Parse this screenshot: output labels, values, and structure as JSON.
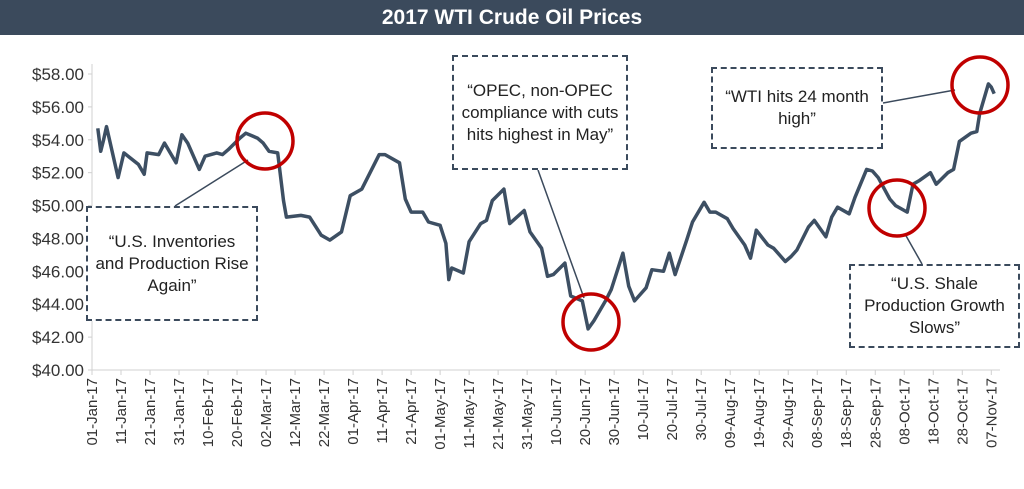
{
  "chart_data": {
    "type": "line",
    "title": "2017 WTI Crude Oil Prices",
    "color": "#3d4f63",
    "grid": false,
    "x": [
      "2017-01-03",
      "2017-01-04",
      "2017-01-05",
      "2017-01-06",
      "2017-01-10",
      "2017-01-12",
      "2017-01-17",
      "2017-01-19",
      "2017-01-20",
      "2017-01-24",
      "2017-01-26",
      "2017-01-30",
      "2017-02-01",
      "2017-02-03",
      "2017-02-07",
      "2017-02-09",
      "2017-02-13",
      "2017-02-15",
      "2017-02-17",
      "2017-02-21",
      "2017-02-23",
      "2017-02-27",
      "2017-03-01",
      "2017-03-03",
      "2017-03-06",
      "2017-03-08",
      "2017-03-09",
      "2017-03-14",
      "2017-03-17",
      "2017-03-21",
      "2017-03-24",
      "2017-03-28",
      "2017-03-31",
      "2017-04-04",
      "2017-04-06",
      "2017-04-10",
      "2017-04-12",
      "2017-04-17",
      "2017-04-19",
      "2017-04-21",
      "2017-04-25",
      "2017-04-27",
      "2017-05-01",
      "2017-05-03",
      "2017-05-04",
      "2017-05-05",
      "2017-05-09",
      "2017-05-11",
      "2017-05-15",
      "2017-05-17",
      "2017-05-19",
      "2017-05-23",
      "2017-05-25",
      "2017-05-30",
      "2017-06-01",
      "2017-06-05",
      "2017-06-07",
      "2017-06-09",
      "2017-06-13",
      "2017-06-15",
      "2017-06-19",
      "2017-06-21",
      "2017-06-23",
      "2017-06-27",
      "2017-06-29",
      "2017-07-03",
      "2017-07-05",
      "2017-07-07",
      "2017-07-11",
      "2017-07-13",
      "2017-07-17",
      "2017-07-19",
      "2017-07-21",
      "2017-07-25",
      "2017-07-27",
      "2017-07-31",
      "2017-08-02",
      "2017-08-04",
      "2017-08-08",
      "2017-08-10",
      "2017-08-14",
      "2017-08-16",
      "2017-08-18",
      "2017-08-22",
      "2017-08-24",
      "2017-08-28",
      "2017-08-30",
      "2017-09-01",
      "2017-09-05",
      "2017-09-07",
      "2017-09-11",
      "2017-09-13",
      "2017-09-15",
      "2017-09-19",
      "2017-09-21",
      "2017-09-25",
      "2017-09-27",
      "2017-09-29",
      "2017-10-03",
      "2017-10-05",
      "2017-10-09",
      "2017-10-11",
      "2017-10-13",
      "2017-10-17",
      "2017-10-19",
      "2017-10-23",
      "2017-10-25",
      "2017-10-27",
      "2017-10-31",
      "2017-11-02",
      "2017-11-03",
      "2017-11-06",
      "2017-11-07",
      "2017-11-08"
    ],
    "values": [
      54.7,
      53.3,
      54.0,
      54.8,
      51.7,
      53.2,
      52.5,
      51.9,
      53.2,
      53.1,
      53.8,
      52.6,
      54.3,
      53.8,
      52.2,
      53.0,
      53.2,
      53.1,
      53.4,
      54.1,
      54.4,
      54.1,
      53.8,
      53.3,
      53.2,
      50.3,
      49.3,
      49.4,
      49.3,
      48.2,
      47.9,
      48.4,
      50.6,
      51.0,
      51.7,
      53.1,
      53.1,
      52.6,
      50.4,
      49.6,
      49.6,
      49.0,
      48.8,
      47.7,
      45.5,
      46.2,
      45.9,
      47.8,
      48.9,
      49.1,
      50.3,
      51.0,
      48.9,
      49.7,
      48.4,
      47.4,
      45.7,
      45.8,
      46.5,
      44.5,
      44.2,
      42.5,
      43.0,
      44.2,
      44.9,
      47.1,
      45.1,
      44.2,
      45.0,
      46.1,
      46.0,
      47.1,
      45.8,
      47.9,
      49.0,
      50.2,
      49.6,
      49.6,
      49.2,
      48.6,
      47.6,
      46.8,
      48.5,
      47.6,
      47.4,
      46.6,
      46.9,
      47.3,
      48.7,
      49.1,
      48.1,
      49.3,
      49.9,
      49.5,
      50.5,
      52.2,
      52.1,
      51.7,
      50.4,
      50.0,
      49.6,
      51.3,
      51.5,
      52.0,
      51.3,
      52.0,
      52.2,
      53.9,
      54.4,
      54.5,
      55.6,
      57.4,
      57.2,
      56.8
    ],
    "xlim": [
      "2017-01-01",
      "2017-11-10"
    ],
    "xticks": [
      {
        "value": "2017-01-01",
        "label": "01-Jan-17"
      },
      {
        "value": "2017-01-11",
        "label": "11-Jan-17"
      },
      {
        "value": "2017-01-21",
        "label": "21-Jan-17"
      },
      {
        "value": "2017-01-31",
        "label": "31-Jan-17"
      },
      {
        "value": "2017-02-10",
        "label": "10-Feb-17"
      },
      {
        "value": "2017-02-20",
        "label": "20-Feb-17"
      },
      {
        "value": "2017-03-02",
        "label": "02-Mar-17"
      },
      {
        "value": "2017-03-12",
        "label": "12-Mar-17"
      },
      {
        "value": "2017-03-22",
        "label": "22-Mar-17"
      },
      {
        "value": "2017-04-01",
        "label": "01-Apr-17"
      },
      {
        "value": "2017-04-11",
        "label": "11-Apr-17"
      },
      {
        "value": "2017-04-21",
        "label": "21-Apr-17"
      },
      {
        "value": "2017-05-01",
        "label": "01-May-17"
      },
      {
        "value": "2017-05-11",
        "label": "11-May-17"
      },
      {
        "value": "2017-05-21",
        "label": "21-May-17"
      },
      {
        "value": "2017-05-31",
        "label": "31-May-17"
      },
      {
        "value": "2017-06-10",
        "label": "10-Jun-17"
      },
      {
        "value": "2017-06-20",
        "label": "20-Jun-17"
      },
      {
        "value": "2017-06-30",
        "label": "30-Jun-17"
      },
      {
        "value": "2017-07-10",
        "label": "10-Jul-17"
      },
      {
        "value": "2017-07-20",
        "label": "20-Jul-17"
      },
      {
        "value": "2017-07-30",
        "label": "30-Jul-17"
      },
      {
        "value": "2017-08-09",
        "label": "09-Aug-17"
      },
      {
        "value": "2017-08-19",
        "label": "19-Aug-17"
      },
      {
        "value": "2017-08-29",
        "label": "29-Aug-17"
      },
      {
        "value": "2017-09-08",
        "label": "08-Sep-17"
      },
      {
        "value": "2017-09-18",
        "label": "18-Sep-17"
      },
      {
        "value": "2017-09-28",
        "label": "28-Sep-17"
      },
      {
        "value": "2017-10-08",
        "label": "08-Oct-17"
      },
      {
        "value": "2017-10-18",
        "label": "18-Oct-17"
      },
      {
        "value": "2017-10-28",
        "label": "28-Oct-17"
      },
      {
        "value": "2017-11-07",
        "label": "07-Nov-17"
      }
    ],
    "ylim": [
      40,
      58
    ],
    "yticks": [
      {
        "value": 40,
        "label": "$40.00"
      },
      {
        "value": 42,
        "label": "$42.00"
      },
      {
        "value": 44,
        "label": "$44.00"
      },
      {
        "value": 46,
        "label": "$46.00"
      },
      {
        "value": 48,
        "label": "$48.00"
      },
      {
        "value": 50,
        "label": "$50.00"
      },
      {
        "value": 52,
        "label": "$52.00"
      },
      {
        "value": 54,
        "label": "$54.00"
      },
      {
        "value": 56,
        "label": "$56.00"
      },
      {
        "value": 58,
        "label": "$58.00"
      }
    ],
    "annotations": [
      "“U.S. Inventories and Production Rise Again”",
      "“OPEC, non-OPEC compliance with cuts hits highest in May”",
      "“WTI hits 24 month high”",
      "“U.S. Shale Production Growth Slows”"
    ]
  }
}
